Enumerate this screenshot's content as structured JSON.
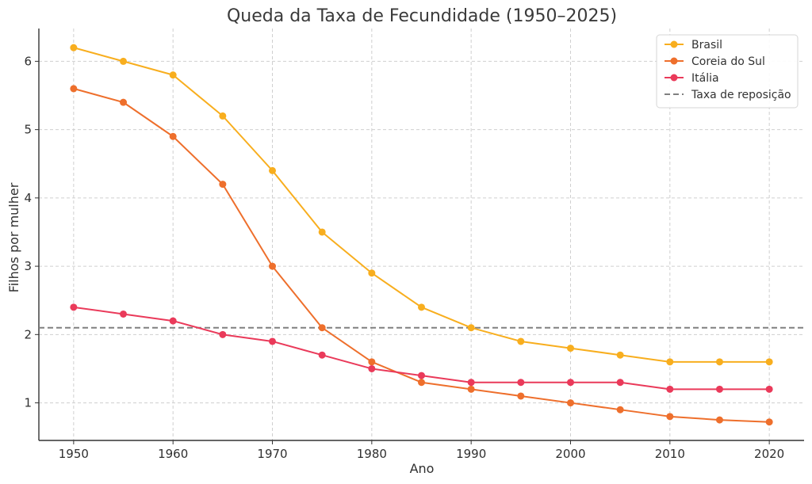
{
  "chart_data": {
    "type": "line",
    "title": "Queda da Taxa de Fecundidade (1950–2025)",
    "xlabel": "Ano",
    "ylabel": "Filhos por mulher",
    "x": [
      1950,
      1955,
      1960,
      1965,
      1970,
      1975,
      1980,
      1985,
      1990,
      1995,
      2000,
      2005,
      2010,
      2015,
      2020
    ],
    "xlim": [
      1946.5,
      2023.5
    ],
    "ylim": [
      0.45,
      6.48
    ],
    "xticks": [
      1950,
      1960,
      1970,
      1980,
      1990,
      2000,
      2010,
      2020
    ],
    "yticks": [
      1,
      2,
      3,
      4,
      5,
      6
    ],
    "grid": true,
    "legend_position": "top-right",
    "series": [
      {
        "name": "Brasil",
        "color": "#F8AE1E",
        "values": [
          6.2,
          6.0,
          5.8,
          5.2,
          4.4,
          3.5,
          2.9,
          2.4,
          2.1,
          1.9,
          1.8,
          1.7,
          1.6,
          1.6,
          1.6
        ]
      },
      {
        "name": "Coreia do Sul",
        "color": "#EE6F2C",
        "values": [
          5.6,
          5.4,
          4.9,
          4.2,
          3.0,
          2.1,
          1.6,
          1.3,
          1.2,
          1.1,
          1.0,
          0.9,
          0.8,
          0.75,
          0.72
        ]
      },
      {
        "name": "Itália",
        "color": "#EA3A5A",
        "values": [
          2.4,
          2.3,
          2.2,
          2.0,
          1.9,
          1.7,
          1.5,
          1.4,
          1.3,
          1.3,
          1.3,
          1.3,
          1.2,
          1.2,
          1.2
        ]
      }
    ],
    "reference_line": {
      "name": "Taxa de reposição",
      "value": 2.1,
      "color": "#808080",
      "style": "dashed"
    }
  }
}
